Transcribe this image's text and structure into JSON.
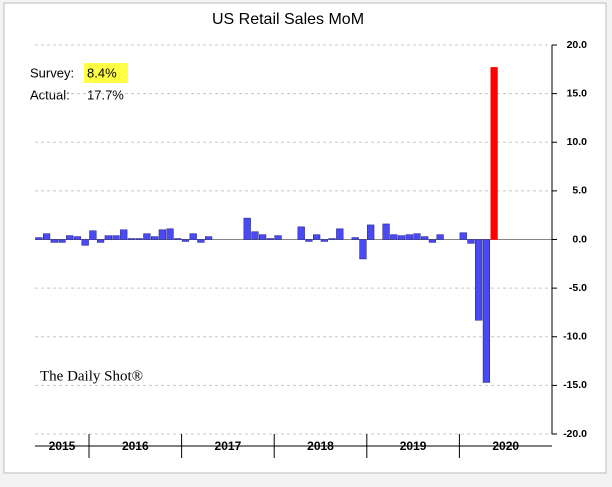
{
  "chart_data": {
    "type": "bar",
    "title": "US Retail Sales MoM",
    "survey_label": "Survey:",
    "survey_value": "8.4%",
    "actual_label": "Actual:",
    "actual_value": "17.7%",
    "watermark": "The Daily Shot®",
    "year_labels": [
      "2015",
      "2016",
      "2017",
      "2018",
      "2019",
      "2020"
    ],
    "values": [
      0.2,
      0.6,
      -0.3,
      -0.3,
      0.4,
      0.3,
      -0.6,
      0.9,
      -0.3,
      0.4,
      0.4,
      1.0,
      0.1,
      0.1,
      0.6,
      0.3,
      1.0,
      1.1,
      0.1,
      -0.2,
      0.6,
      -0.3,
      0.3,
      0.0,
      0.0,
      0.0,
      0.0,
      2.2,
      0.8,
      0.5,
      0.1,
      0.4,
      0.0,
      0.0,
      1.3,
      -0.2,
      0.5,
      -0.2,
      0.1,
      1.1,
      0.0,
      0.2,
      -2.0,
      1.5,
      0.0,
      1.6,
      0.5,
      0.4,
      0.5,
      0.6,
      0.3,
      -0.3,
      0.5,
      0.0,
      0.0,
      0.7,
      -0.4,
      -8.3,
      -14.7,
      17.7
    ],
    "color": "#4a4af5",
    "highlight_color": "#ff0000",
    "ylim": [
      -20,
      20
    ],
    "yticks": [
      {
        "value": -20,
        "label": "-20.0"
      },
      {
        "value": -15,
        "label": "-15.0"
      },
      {
        "value": -10,
        "label": "-10.0"
      },
      {
        "value": -5,
        "label": "-5.0"
      },
      {
        "value": 0,
        "label": "0.0"
      },
      {
        "value": 5,
        "label": "5.0"
      },
      {
        "value": 10,
        "label": "10.0"
      },
      {
        "value": 15,
        "label": "15.0"
      },
      {
        "value": 20,
        "label": "20.0"
      }
    ],
    "grid": true
  }
}
